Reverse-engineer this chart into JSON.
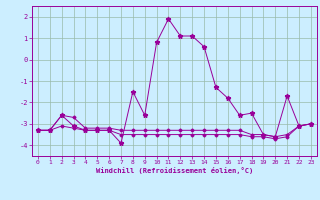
{
  "xlabel": "Windchill (Refroidissement éolien,°C)",
  "background_color": "#cceeff",
  "grid_color": "#99bbaa",
  "line_color": "#990099",
  "x_ticks": [
    0,
    1,
    2,
    3,
    4,
    5,
    6,
    7,
    8,
    9,
    10,
    11,
    12,
    13,
    14,
    15,
    16,
    17,
    18,
    19,
    20,
    21,
    22,
    23
  ],
  "ylim": [
    -4.5,
    2.5
  ],
  "yticks": [
    -4,
    -3,
    -2,
    -1,
    0,
    1,
    2
  ],
  "line1_x": [
    0,
    1,
    2,
    3,
    4,
    5,
    6,
    7,
    8,
    9,
    10,
    11,
    12,
    13,
    14,
    15,
    16,
    17,
    18,
    19,
    20,
    21,
    22,
    23
  ],
  "line1_y": [
    -3.3,
    -3.3,
    -2.6,
    -3.1,
    -3.3,
    -3.3,
    -3.3,
    -3.9,
    -1.5,
    -2.6,
    0.8,
    1.9,
    1.1,
    1.1,
    0.6,
    -1.3,
    -1.8,
    -2.6,
    -2.5,
    -3.5,
    -3.6,
    -1.7,
    -3.1,
    -3.0
  ],
  "line2_x": [
    0,
    1,
    2,
    3,
    4,
    5,
    6,
    7,
    8,
    9,
    10,
    11,
    12,
    13,
    14,
    15,
    16,
    17,
    18,
    19,
    20,
    21,
    22,
    23
  ],
  "line2_y": [
    -3.3,
    -3.3,
    -2.6,
    -2.7,
    -3.2,
    -3.2,
    -3.2,
    -3.3,
    -3.3,
    -3.3,
    -3.3,
    -3.3,
    -3.3,
    -3.3,
    -3.3,
    -3.3,
    -3.3,
    -3.3,
    -3.5,
    -3.5,
    -3.6,
    -3.5,
    -3.1,
    -3.0
  ],
  "line3_x": [
    0,
    1,
    2,
    3,
    4,
    5,
    6,
    7,
    8,
    9,
    10,
    11,
    12,
    13,
    14,
    15,
    16,
    17,
    18,
    19,
    20,
    21,
    22,
    23
  ],
  "line3_y": [
    -3.3,
    -3.3,
    -3.1,
    -3.2,
    -3.3,
    -3.3,
    -3.3,
    -3.5,
    -3.5,
    -3.5,
    -3.5,
    -3.5,
    -3.5,
    -3.5,
    -3.5,
    -3.5,
    -3.5,
    -3.5,
    -3.6,
    -3.6,
    -3.7,
    -3.6,
    -3.1,
    -3.0
  ],
  "figsize": [
    3.2,
    2.0
  ],
  "dpi": 100
}
